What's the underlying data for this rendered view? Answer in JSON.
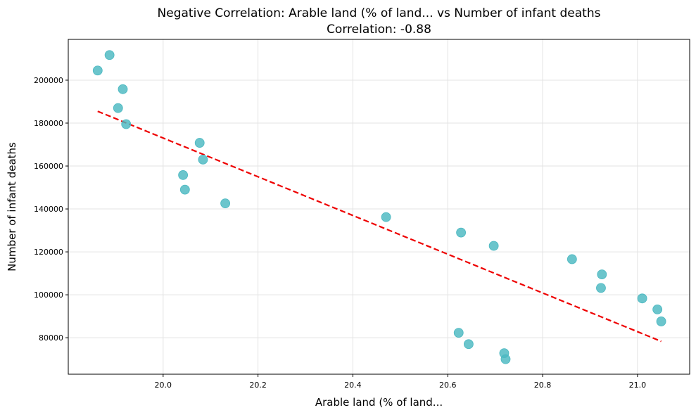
{
  "chart_data": {
    "type": "scatter",
    "title": "Negative Correlation: Arable land (% of land... vs Number of infant deaths",
    "subtitle": "Correlation: -0.88",
    "xlabel": "Arable land (% of land...",
    "ylabel": "Number of infant deaths",
    "xlim": [
      19.8,
      21.11
    ],
    "ylim": [
      63000,
      219000
    ],
    "xticks": [
      20.0,
      20.2,
      20.4,
      20.6,
      20.8,
      21.0
    ],
    "xtick_labels": [
      "20.0",
      "20.2",
      "20.4",
      "20.6",
      "20.8",
      "21.0"
    ],
    "yticks": [
      80000,
      100000,
      120000,
      140000,
      160000,
      180000,
      200000
    ],
    "ytick_labels": [
      "80000",
      "100000",
      "120000",
      "140000",
      "160000",
      "180000",
      "200000"
    ],
    "grid": true,
    "point_color": "#4ab8c1",
    "trend_color": "#ee0000",
    "points": [
      {
        "x": 19.862,
        "y": 204500
      },
      {
        "x": 19.887,
        "y": 211700
      },
      {
        "x": 19.905,
        "y": 187000
      },
      {
        "x": 19.915,
        "y": 195800
      },
      {
        "x": 19.922,
        "y": 179500
      },
      {
        "x": 20.042,
        "y": 155800
      },
      {
        "x": 20.046,
        "y": 149000
      },
      {
        "x": 20.077,
        "y": 170800
      },
      {
        "x": 20.084,
        "y": 163000
      },
      {
        "x": 20.131,
        "y": 142600
      },
      {
        "x": 20.47,
        "y": 136200
      },
      {
        "x": 20.623,
        "y": 82300
      },
      {
        "x": 20.628,
        "y": 129000
      },
      {
        "x": 20.644,
        "y": 77000
      },
      {
        "x": 20.697,
        "y": 122800
      },
      {
        "x": 20.719,
        "y": 72800
      },
      {
        "x": 20.722,
        "y": 70000
      },
      {
        "x": 20.862,
        "y": 116600
      },
      {
        "x": 20.923,
        "y": 103200
      },
      {
        "x": 20.925,
        "y": 109500
      },
      {
        "x": 21.01,
        "y": 98300
      },
      {
        "x": 21.042,
        "y": 93200
      },
      {
        "x": 21.05,
        "y": 87600
      }
    ],
    "trendline": {
      "x1": 19.862,
      "y1": 185500,
      "x2": 21.05,
      "y2": 78300
    }
  }
}
